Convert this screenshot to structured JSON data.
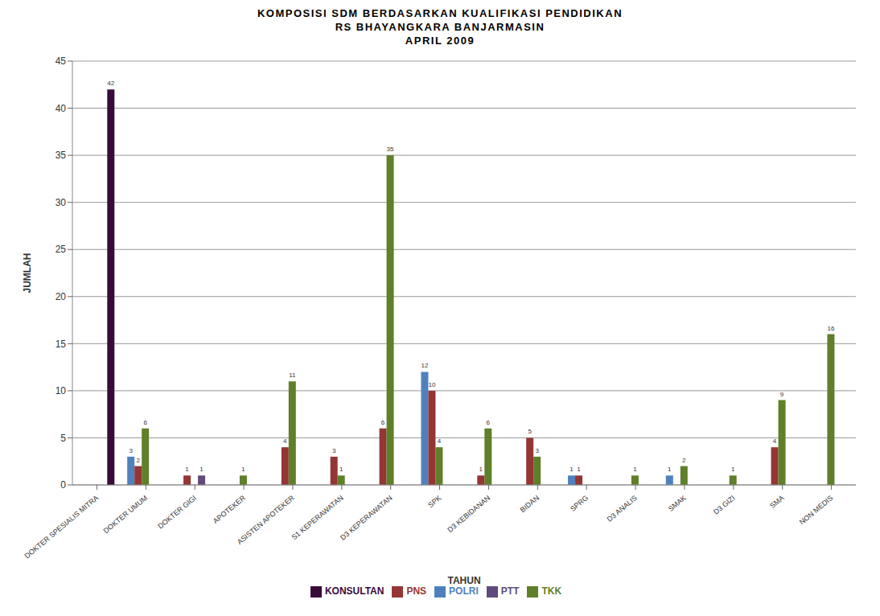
{
  "chart_data": {
    "type": "bar",
    "title": [
      "KOMPOSISI SDM BERDASARKAN KUALIFIKASI PENDIDIKAN",
      "RS BHAYANGKARA BANJARMASIN",
      "APRIL 2009"
    ],
    "x_label": "TAHUN",
    "y_label": "JUMLAH",
    "categories": [
      "DOKTER SPESIALIS MITRA",
      "DOKTER UMUM",
      "DOKTER GIGI",
      "APOTEKER",
      "ASISTEN APOTEKER",
      "S1 KEPERAWATAN",
      "D3 KEPERAWATAN",
      "SPK",
      "D3 KEBIDANAN",
      "BIDAN",
      "SPRG",
      "D3 ANALIS",
      "SMAK",
      "D3 GIZI",
      "SMA",
      "NON MEDIS"
    ],
    "series": [
      {
        "name": "POLRI",
        "color": "#4f81bd",
        "values": [
          0,
          3,
          0,
          0,
          0,
          0,
          0,
          12,
          0,
          0,
          1,
          0,
          1,
          0,
          0,
          0
        ]
      },
      {
        "name": "PNS",
        "color": "#943634",
        "values": [
          0,
          2,
          1,
          0,
          4,
          3,
          6,
          10,
          1,
          5,
          1,
          0,
          0,
          0,
          4,
          0
        ]
      },
      {
        "name": "TKK",
        "color": "#5f7f2a",
        "values": [
          0,
          6,
          0,
          1,
          11,
          1,
          35,
          4,
          6,
          3,
          0,
          1,
          2,
          1,
          9,
          16
        ]
      },
      {
        "name": "PTT",
        "color": "#604a7b",
        "values": [
          0,
          0,
          1,
          0,
          0,
          0,
          0,
          0,
          0,
          0,
          0,
          0,
          0,
          0,
          0,
          0
        ]
      },
      {
        "name": "KONSULTAN",
        "color": "#3a0a3a",
        "values": [
          42,
          0,
          0,
          0,
          0,
          0,
          0,
          0,
          0,
          0,
          0,
          0,
          0,
          0,
          0,
          0
        ]
      }
    ],
    "ylim": [
      0,
      45
    ],
    "yticks": [
      0,
      5,
      10,
      15,
      20,
      25,
      30,
      35,
      40,
      45
    ],
    "grid": true,
    "legend": "bottom",
    "data_labels": true
  }
}
